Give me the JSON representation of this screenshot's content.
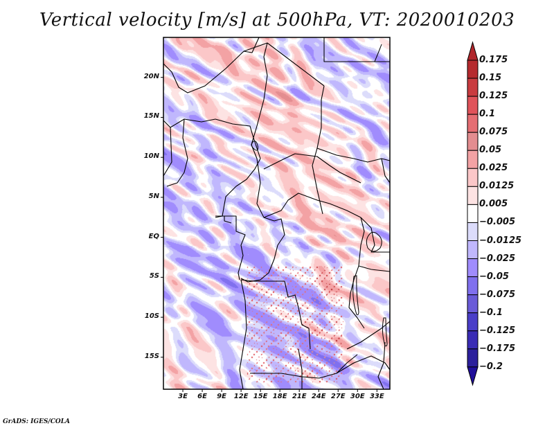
{
  "title": "Vertical velocity [m/s] at 500hPa, VT: 2020010203",
  "credit": "GrADS: IGES/COLA",
  "map": {
    "variable": "Vertical velocity",
    "units": "m/s",
    "level": "500hPa",
    "valid_time": "2020010203",
    "lon_range": [
      0,
      35
    ],
    "lat_range": [
      -19,
      25
    ],
    "y_ticks": [
      {
        "value": 20,
        "label": "20N"
      },
      {
        "value": 15,
        "label": "15N"
      },
      {
        "value": 10,
        "label": "10N"
      },
      {
        "value": 5,
        "label": "5N"
      },
      {
        "value": 0,
        "label": "EQ"
      },
      {
        "value": -5,
        "label": "5S"
      },
      {
        "value": -10,
        "label": "10S"
      },
      {
        "value": -15,
        "label": "15S"
      }
    ],
    "x_ticks": [
      {
        "value": 3,
        "label": "3E"
      },
      {
        "value": 6,
        "label": "6E"
      },
      {
        "value": 9,
        "label": "9E"
      },
      {
        "value": 12,
        "label": "12E"
      },
      {
        "value": 15,
        "label": "15E"
      },
      {
        "value": 18,
        "label": "18E"
      },
      {
        "value": 21,
        "label": "21E"
      },
      {
        "value": 24,
        "label": "24E"
      },
      {
        "value": 27,
        "label": "27E"
      },
      {
        "value": 30,
        "label": "30E"
      },
      {
        "value": 33,
        "label": "33E"
      }
    ]
  },
  "colorbar": {
    "levels": [
      "0.175",
      "0.15",
      "0.125",
      "0.1",
      "0.075",
      "0.05",
      "0.025",
      "0.0125",
      "0.005",
      "−0.005",
      "−0.0125",
      "−0.025",
      "−0.05",
      "−0.075",
      "−0.1",
      "−0.125",
      "−0.175",
      "−0.2"
    ],
    "colors": [
      "#b0262b",
      "#b52a2e",
      "#c93b3f",
      "#e0535a",
      "#e56e73",
      "#e38d90",
      "#f3a2a4",
      "#fbc7c8",
      "#fde3e3",
      "#ffffff",
      "#dcdcfb",
      "#c0b7fd",
      "#a08cfd",
      "#8070ee",
      "#6a5bd8",
      "#4a3ec8",
      "#3a2cb5",
      "#2c209c",
      "#200f9a"
    ]
  }
}
